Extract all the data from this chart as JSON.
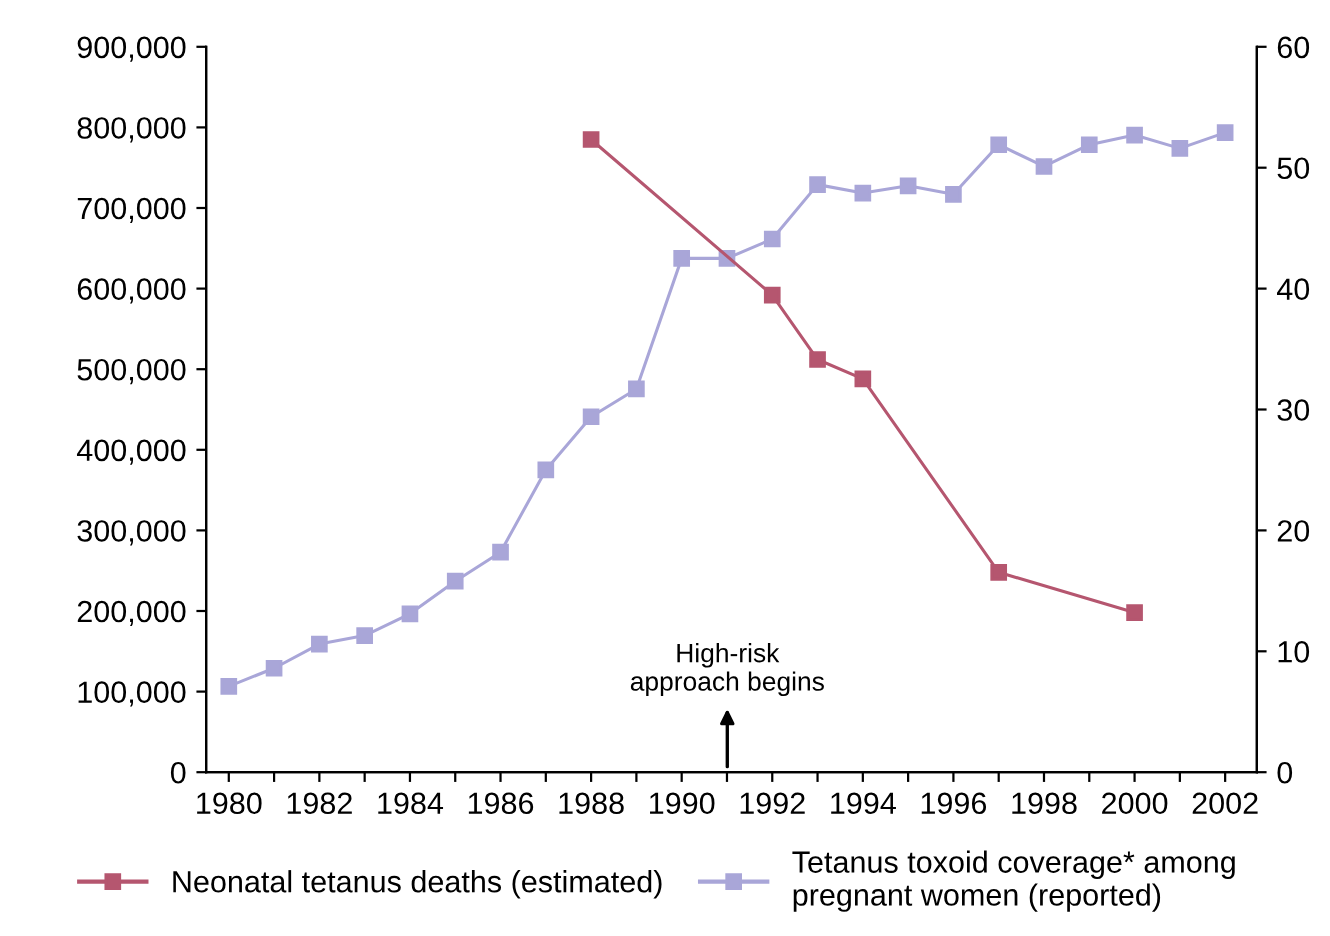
{
  "chart_data": {
    "type": "line",
    "series": [
      {
        "name": "Neonatal tetanus deaths (estimated)",
        "color": "#b5566f",
        "x": [
          1988,
          1992,
          1993,
          1994,
          1997,
          2000
        ],
        "values": [
          785000,
          592000,
          512000,
          488000,
          248000,
          198000
        ]
      },
      {
        "name": "Tetanus toxoid coverage* among pregnant women (reported)",
        "color": "#a9a6d8",
        "axis": "y2",
        "x": [
          1980,
          1981,
          1982,
          1983,
          1984,
          1985,
          1986,
          1987,
          1988,
          1989,
          1990,
          1991,
          1992,
          1993,
          1994,
          1995,
          1996,
          1997,
          1998,
          1999,
          2000,
          2001,
          2002
        ],
        "values": [
          7.1,
          8.6,
          10.6,
          11.3,
          13.1,
          15.8,
          18.2,
          25,
          29.4,
          31.7,
          42.5,
          42.5,
          44.1,
          48.6,
          47.9,
          48.5,
          47.8,
          51.9,
          50.1,
          51.9,
          52.7,
          51.6,
          52.9
        ]
      }
    ],
    "xlim": [
      1979.5,
      2002.7
    ],
    "xticks": [
      1980,
      {
        "value": 1981,
        "label": null
      },
      1982,
      {
        "value": 1983,
        "label": null
      },
      1984,
      {
        "value": 1985,
        "label": null
      },
      1986,
      {
        "value": 1987,
        "label": null
      },
      1988,
      {
        "value": 1989,
        "label": null
      },
      1990,
      {
        "value": 1991,
        "label": null
      },
      1992,
      {
        "value": 1993,
        "label": null
      },
      1994,
      {
        "value": 1995,
        "label": null
      },
      1996,
      {
        "value": 1997,
        "label": null
      },
      1998,
      {
        "value": 1999,
        "label": null
      },
      2000,
      {
        "value": 2001,
        "label": null
      },
      2002
    ],
    "ylim": [
      0,
      900000
    ],
    "yticks": [
      {
        "value": 0,
        "label": "0"
      },
      {
        "value": 100000,
        "label": "100,000"
      },
      {
        "value": 200000,
        "label": "200,000"
      },
      {
        "value": 300000,
        "label": "300,000"
      },
      {
        "value": 400000,
        "label": "400,000"
      },
      {
        "value": 500000,
        "label": "500,000"
      },
      {
        "value": 600000,
        "label": "600,000"
      },
      {
        "value": 700000,
        "label": "700,000"
      },
      {
        "value": 800000,
        "label": "800,000"
      },
      {
        "value": 900000,
        "label": "900,000"
      }
    ],
    "y2lim": [
      0,
      60
    ],
    "y2ticks": [
      0,
      10,
      20,
      30,
      40,
      50,
      60
    ],
    "annotations": [
      "High-risk\napproach begins"
    ],
    "marker": "square",
    "line_style": "solid",
    "grid": false,
    "legend": "bottom"
  }
}
